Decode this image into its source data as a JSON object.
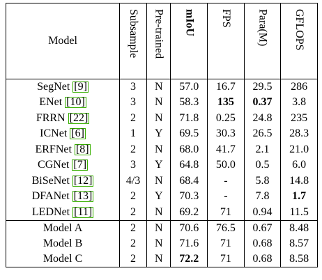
{
  "headers": {
    "model": "Model",
    "subsample": "Subsample",
    "pretrained": "Pre-trained",
    "miou": "mIoU",
    "fps": "FPS",
    "para": "Para(M)",
    "gflops": "GFLOPS"
  },
  "baselines": [
    {
      "name": "SegNet",
      "ref": "[9]",
      "subsample": "3",
      "pretrained": "N",
      "miou": "57.0",
      "fps": "16.7",
      "para": "29.5",
      "gflops": "286"
    },
    {
      "name": "ENet",
      "ref": "[10]",
      "subsample": "3",
      "pretrained": "N",
      "miou": "58.3",
      "fps": "135",
      "para": "0.37",
      "gflops": "3.8"
    },
    {
      "name": "FRRN",
      "ref": "[22]",
      "subsample": "2",
      "pretrained": "N",
      "miou": "71.8",
      "fps": "0.25",
      "para": "24.8",
      "gflops": "235"
    },
    {
      "name": "ICNet",
      "ref": "[6]",
      "subsample": "1",
      "pretrained": "Y",
      "miou": "69.5",
      "fps": "30.3",
      "para": "26.5",
      "gflops": "28.3"
    },
    {
      "name": "ERFNet",
      "ref": "[8]",
      "subsample": "2",
      "pretrained": "N",
      "miou": "68.0",
      "fps": "41.7",
      "para": "2.1",
      "gflops": "21.0"
    },
    {
      "name": "CGNet",
      "ref": "[7]",
      "subsample": "3",
      "pretrained": "Y",
      "miou": "64.8",
      "fps": "50.0",
      "para": "0.5",
      "gflops": "6.0"
    },
    {
      "name": "BiSeNet",
      "ref": "[12]",
      "subsample": "4/3",
      "pretrained": "N",
      "miou": "68.4",
      "fps": "-",
      "para": "5.8",
      "gflops": "14.8"
    },
    {
      "name": "DFANet",
      "ref": "[13]",
      "subsample": "2",
      "pretrained": "Y",
      "miou": "70.3",
      "fps": "-",
      "para": "7.8",
      "gflops": "1.7"
    },
    {
      "name": "LEDNet",
      "ref": "[11]",
      "subsample": "2",
      "pretrained": "N",
      "miou": "69.2",
      "fps": "71",
      "para": "0.94",
      "gflops": "11.5"
    }
  ],
  "models": [
    {
      "name": "Model A",
      "subsample": "2",
      "pretrained": "N",
      "miou": "70.6",
      "fps": "76.5",
      "para": "0.67",
      "gflops": "8.48"
    },
    {
      "name": "Model B",
      "subsample": "2",
      "pretrained": "N",
      "miou": "71.6",
      "fps": "71",
      "para": "0.68",
      "gflops": "8.57"
    },
    {
      "name": "Model C",
      "subsample": "2",
      "pretrained": "N",
      "miou": "72.2",
      "fps": "71",
      "para": "0.68",
      "gflops": "8.58"
    }
  ]
}
